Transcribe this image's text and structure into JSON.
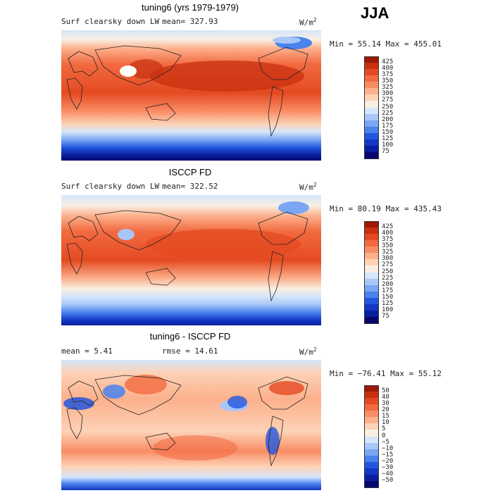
{
  "season": "JJA",
  "colors": {
    "scale": [
      "#08066e",
      "#0a1f9e",
      "#1438c4",
      "#2356dc",
      "#4a82ee",
      "#7aa6f4",
      "#a8c6f8",
      "#d4e6fb",
      "#f8efe3",
      "#fdd2b6",
      "#fcb08c",
      "#f98c64",
      "#f26a40",
      "#e44a22",
      "#c8300f",
      "#9e1808"
    ],
    "land": "#222222"
  },
  "chart_data": [
    {
      "type": "heatmap",
      "title": "tuning6 (yrs 1979-1979)",
      "variable": "Surf clearsky down LW",
      "mean_label": "mean= 327.93",
      "units": "W/m",
      "units_exp": "2",
      "minmax": "Min =  55.14 Max = 455.01",
      "colorbar_levels": [
        "425",
        "400",
        "375",
        "350",
        "325",
        "300",
        "275",
        "250",
        "225",
        "200",
        "175",
        "150",
        "125",
        "100",
        "75"
      ],
      "min": 55.14,
      "max": 455.01,
      "mean": 327.93
    },
    {
      "type": "heatmap",
      "title": "ISCCP FD",
      "variable": "Surf clearsky down LW",
      "mean_label": "mean= 322.52",
      "units": "W/m",
      "units_exp": "2",
      "minmax": "Min =  80.19 Max = 435.43",
      "colorbar_levels": [
        "425",
        "400",
        "375",
        "350",
        "325",
        "300",
        "275",
        "250",
        "225",
        "200",
        "175",
        "150",
        "125",
        "100",
        "75"
      ],
      "min": 80.19,
      "max": 435.43,
      "mean": 322.52
    },
    {
      "type": "heatmap",
      "title": "tuning6 - ISCCP FD",
      "mean_label": "mean =   5.41",
      "rmse_label": "rmse =  14.61",
      "units": "W/m",
      "units_exp": "2",
      "minmax": "Min = −76.41 Max =  55.12",
      "colorbar_levels": [
        "50",
        "40",
        "30",
        "20",
        "15",
        "10",
        "5",
        "0",
        "−5",
        "−10",
        "−15",
        "−20",
        "−30",
        "−40",
        "−50"
      ],
      "min": -76.41,
      "max": 55.12,
      "mean": 5.41,
      "rmse": 14.61
    }
  ]
}
